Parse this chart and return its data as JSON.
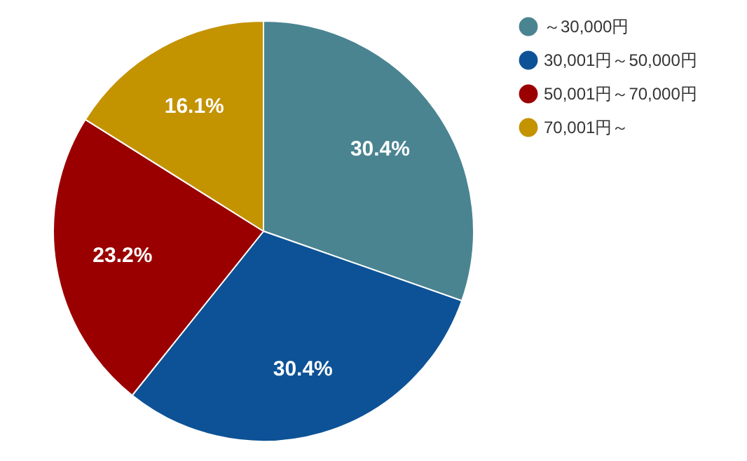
{
  "chart_data": {
    "type": "pie",
    "categories": [
      "～30,000円",
      "30,001円～50,000円",
      "50,001円～70,000円",
      "70,001円～"
    ],
    "values": [
      30.4,
      30.4,
      23.2,
      16.1
    ],
    "value_labels": [
      "30.4%",
      "30.4%",
      "23.2%",
      "16.1%"
    ],
    "colors": [
      "#4a8491",
      "#0d5296",
      "#9b0000",
      "#c49300"
    ],
    "legend": "top right"
  }
}
